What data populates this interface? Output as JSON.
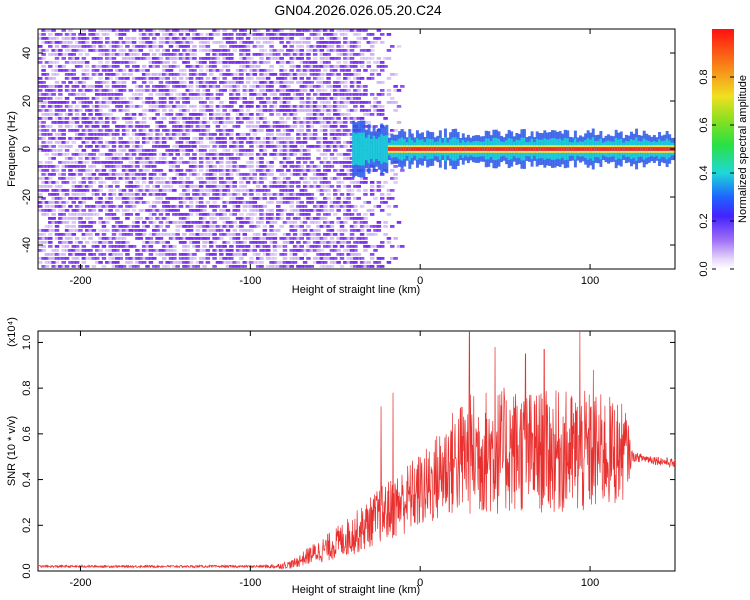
{
  "title": "GN04.2026.026.05.20.C24",
  "chart_data": [
    {
      "type": "heatmap",
      "xlabel": "Height of straight line (km)",
      "ylabel": "Frequency (Hz)",
      "xlim": [
        -225,
        150
      ],
      "ylim": [
        -50,
        50
      ],
      "x_ticks": [
        -200,
        -100,
        0,
        100
      ],
      "y_ticks": [
        -40,
        -20,
        0,
        20,
        40
      ],
      "colorbar": {
        "label": "Normalized spectral amplitude",
        "range": [
          0.0,
          1.0
        ],
        "ticks": [
          0.0,
          0.2,
          0.4,
          0.6,
          0.8
        ],
        "tick_labels": [
          "0.0",
          "0.2",
          "0.4",
          "0.6",
          "0.8"
        ]
      },
      "colors": {
        "noise": "#7b2cf0",
        "noise_light": "#c9a8f7",
        "line_core": "#e53030",
        "line_mid": "#f4e24a",
        "line_outer": "#19d3d8",
        "line_edge": "#2a56e8"
      },
      "features": {
        "broadband_noise_x_range": [
          -225,
          -25
        ],
        "fading_noise_x_range": [
          -40,
          -10
        ],
        "narrowband_line_x_range": [
          -40,
          150
        ],
        "narrowband_line_frequency": 0
      }
    },
    {
      "type": "line",
      "xlabel": "Height of straight line (km)",
      "ylabel": "SNR (10 * v/v)",
      "scale_label": "(x10⁴)",
      "xlim": [
        -225,
        150
      ],
      "ylim": [
        0,
        1.05
      ],
      "x_ticks": [
        -200,
        -100,
        0,
        100
      ],
      "y_ticks": [
        0.0,
        0.2,
        0.4,
        0.6,
        0.8,
        1.0
      ],
      "y_tick_labels": [
        "0.0",
        "0.2",
        "0.4",
        "0.6",
        "0.8",
        "1.0"
      ],
      "line_color": "#e8302f",
      "series": [
        {
          "x": [
            -225,
            -200,
            -150,
            -100,
            -85,
            -75,
            -65,
            -55,
            -45,
            -35,
            -25,
            -15,
            -5,
            5,
            15,
            25,
            35,
            45,
            55,
            65,
            75,
            85,
            95,
            105,
            115,
            121,
            125,
            135,
            150
          ],
          "y": [
            0.02,
            0.02,
            0.02,
            0.02,
            0.02,
            0.03,
            0.07,
            0.1,
            0.14,
            0.18,
            0.24,
            0.28,
            0.33,
            0.37,
            0.45,
            0.5,
            0.52,
            0.52,
            0.53,
            0.52,
            0.52,
            0.52,
            0.51,
            0.52,
            0.52,
            0.52,
            0.5,
            0.49,
            0.47
          ],
          "spread": [
            0.005,
            0.005,
            0.005,
            0.005,
            0.01,
            0.02,
            0.04,
            0.06,
            0.08,
            0.1,
            0.12,
            0.14,
            0.16,
            0.18,
            0.22,
            0.26,
            0.28,
            0.28,
            0.28,
            0.27,
            0.27,
            0.27,
            0.28,
            0.26,
            0.24,
            0.2,
            0.02,
            0.02,
            0.02
          ],
          "peaks": [
            [
              -23,
              0.72
            ],
            [
              -16,
              0.78
            ],
            [
              29,
              1.05
            ],
            [
              44,
              0.98
            ],
            [
              62,
              0.95
            ],
            [
              73,
              0.97
            ],
            [
              94,
              1.05
            ],
            [
              102,
              0.88
            ]
          ]
        }
      ]
    }
  ]
}
